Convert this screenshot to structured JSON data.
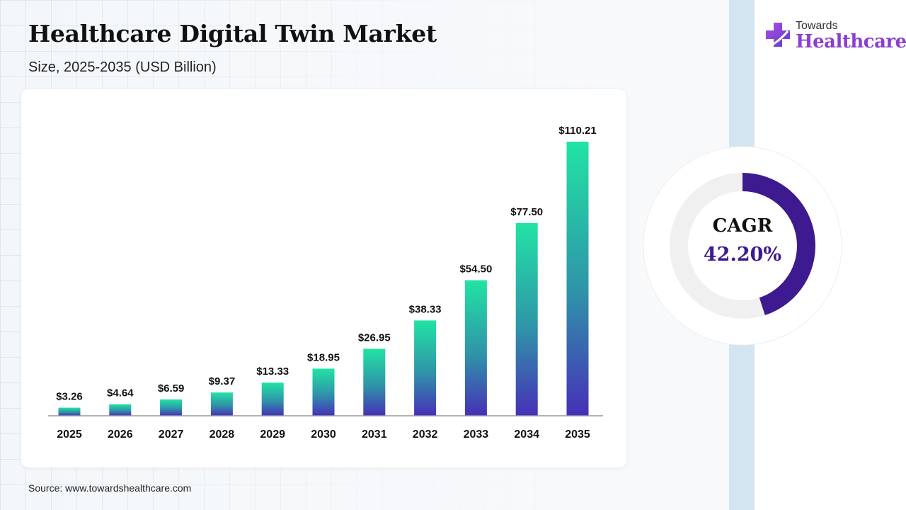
{
  "header": {
    "title": "Healthcare Digital Twin Market",
    "subtitle": "Size, 2025-2035 (USD Billion)"
  },
  "brand": {
    "logo_top": "Towards",
    "logo_bottom": "Healthcare",
    "logo_color": "#8a3fd1",
    "logo_icon": "medical-cross-icon"
  },
  "cagr": {
    "label": "CAGR",
    "value": "42.20%",
    "arc_fraction": 0.45,
    "arc_color": "#3d1a8f",
    "track_color": "#f0f0f0"
  },
  "footer": {
    "source": "Source: www.towardshealthcare.com"
  },
  "chart_data": {
    "type": "bar",
    "categories": [
      "2025",
      "2026",
      "2027",
      "2028",
      "2029",
      "2030",
      "2031",
      "2032",
      "2033",
      "2034",
      "2035"
    ],
    "values": [
      3.26,
      4.64,
      6.59,
      9.37,
      13.33,
      18.95,
      26.95,
      38.33,
      54.5,
      77.5,
      110.21
    ],
    "value_labels": [
      "$3.26",
      "$4.64",
      "$6.59",
      "$9.37",
      "$13.33",
      "$18.95",
      "$26.95",
      "$38.33",
      "$54.50",
      "$77.50",
      "$110.21"
    ],
    "title": "",
    "xlabel": "",
    "ylabel": "",
    "ylim": [
      0,
      110.21
    ],
    "grid": false,
    "legend": "none",
    "bar_gradient": {
      "top": "#22e3a4",
      "bottom": "#4630b8"
    }
  }
}
